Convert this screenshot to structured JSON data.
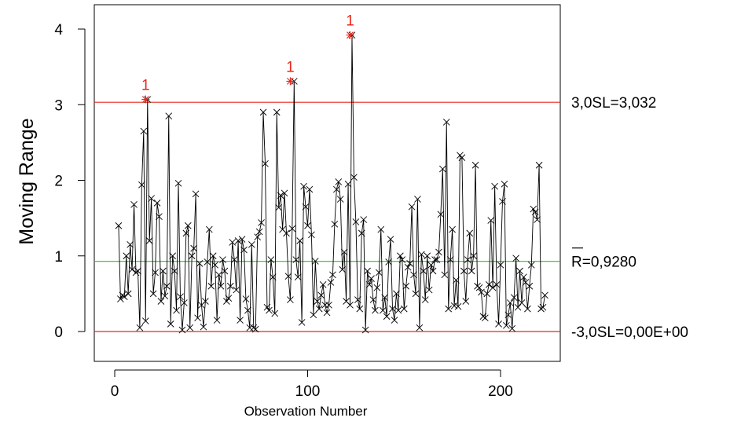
{
  "chart_data": {
    "type": "line",
    "chart_kind": "moving range control chart",
    "xlabel": "Observation Number",
    "ylabel": "Moving Range",
    "xlim": [
      -10,
      230
    ],
    "ylim": [
      -0.3,
      4.3
    ],
    "x_ticks": [
      0,
      100,
      200
    ],
    "y_ticks": [
      0,
      1,
      2,
      3,
      4
    ],
    "grid": false,
    "colors": {
      "data": "#000000",
      "limits": "#e8271b",
      "center": "#1dcc1d",
      "out_of_control": "#e8271b"
    },
    "limits": [
      {
        "name": "upper",
        "value": 3.032,
        "label": "3,0SL=3,032",
        "color": "#e8271b"
      },
      {
        "name": "center",
        "value": 0.928,
        "label": "R=0,9280",
        "overline_char": "R",
        "color": "#1dcc1d"
      },
      {
        "name": "lower",
        "value": 0.0,
        "label": "-3,0SL=0,00E+00",
        "color": "#e8271b"
      }
    ],
    "out_of_control_label": "1",
    "out_of_control_points": [
      {
        "x": 16,
        "y": 3.07
      },
      {
        "x": 91,
        "y": 3.31
      },
      {
        "x": 122,
        "y": 3.92
      }
    ],
    "series": [
      {
        "x_start": 2,
        "values": [
          1.4,
          0.43,
          0.48,
          0.46,
          1.0,
          0.5,
          1.15,
          0.82,
          1.68,
          0.78,
          0.8,
          0.05,
          1.94,
          2.65,
          0.14,
          3.07,
          1.2,
          1.76,
          0.5,
          0.78,
          1.7,
          1.52,
          0.4,
          0.8,
          0.47,
          0.6,
          2.85,
          0.1,
          1.0,
          0.8,
          0.28,
          1.96,
          0.46,
          0.02,
          0.38,
          1.3,
          1.4,
          0.05,
          1.0,
          1.1,
          1.82,
          0.18,
          0.9,
          0.35,
          0.06,
          0.4,
          0.92,
          1.35,
          0.6,
          1.0,
          0.88,
          0.15,
          0.75,
          0.6,
          0.95,
          0.8,
          0.4,
          0.44,
          0.6,
          1.18,
          0.95,
          0.55,
          1.2,
          0.15,
          1.22,
          1.08,
          0.43,
          0.28,
          0.05,
          1.15,
          0.05,
          0.03,
          1.25,
          1.32,
          1.44,
          2.9,
          2.22,
          0.32,
          0.28,
          0.95,
          0.72,
          0.24,
          2.9,
          1.64,
          1.8,
          1.35,
          1.83,
          1.3,
          0.73,
          0.42,
          1.36,
          3.31,
          0.95,
          0.72,
          1.2,
          0.12,
          1.92,
          1.65,
          1.4,
          1.88,
          1.28,
          0.22,
          0.93,
          0.4,
          0.3,
          0.48,
          0.62,
          0.35,
          0.25,
          0.35,
          0.65,
          0.75,
          1.42,
          1.88,
          1.98,
          1.75,
          0.82,
          1.05,
          0.4,
          1.95,
          0.35,
          3.92,
          2.04,
          1.45,
          0.42,
          0.3,
          1.3,
          1.48,
          0.02,
          0.8,
          0.62,
          0.7,
          0.42,
          0.28,
          0.58,
          0.78,
          1.35,
          0.28,
          0.45,
          0.2,
          0.92,
          1.22,
          0.3,
          0.15,
          0.5,
          0.28,
          1.0,
          0.95,
          0.3,
          0.6,
          0.85,
          0.9,
          1.65,
          0.75,
          0.5,
          1.75,
          0.05,
          1.02,
          0.8,
          0.42,
          1.0,
          0.55,
          0.88,
          0.8,
          0.95,
          0.95,
          1.05,
          1.55,
          2.15,
          0.75,
          2.77,
          0.3,
          0.95,
          1.35,
          0.34,
          0.68,
          0.33,
          2.33,
          2.3,
          0.8,
          0.4,
          0.95,
          1.3,
          0.8,
          1.0,
          2.2,
          0.6,
          0.58,
          0.52,
          0.2,
          0.18,
          0.5,
          0.62,
          1.47,
          0.58,
          1.92,
          0.62,
          0.1,
          0.88,
          1.72,
          1.95,
          0.08,
          0.22,
          0.38,
          0.04,
          0.45,
          0.97,
          0.32,
          0.8,
          0.38,
          0.72,
          0.65,
          0.3,
          0.6,
          0.88,
          1.62,
          1.58,
          1.48,
          2.2,
          0.3,
          0.32,
          0.48
        ]
      }
    ]
  }
}
